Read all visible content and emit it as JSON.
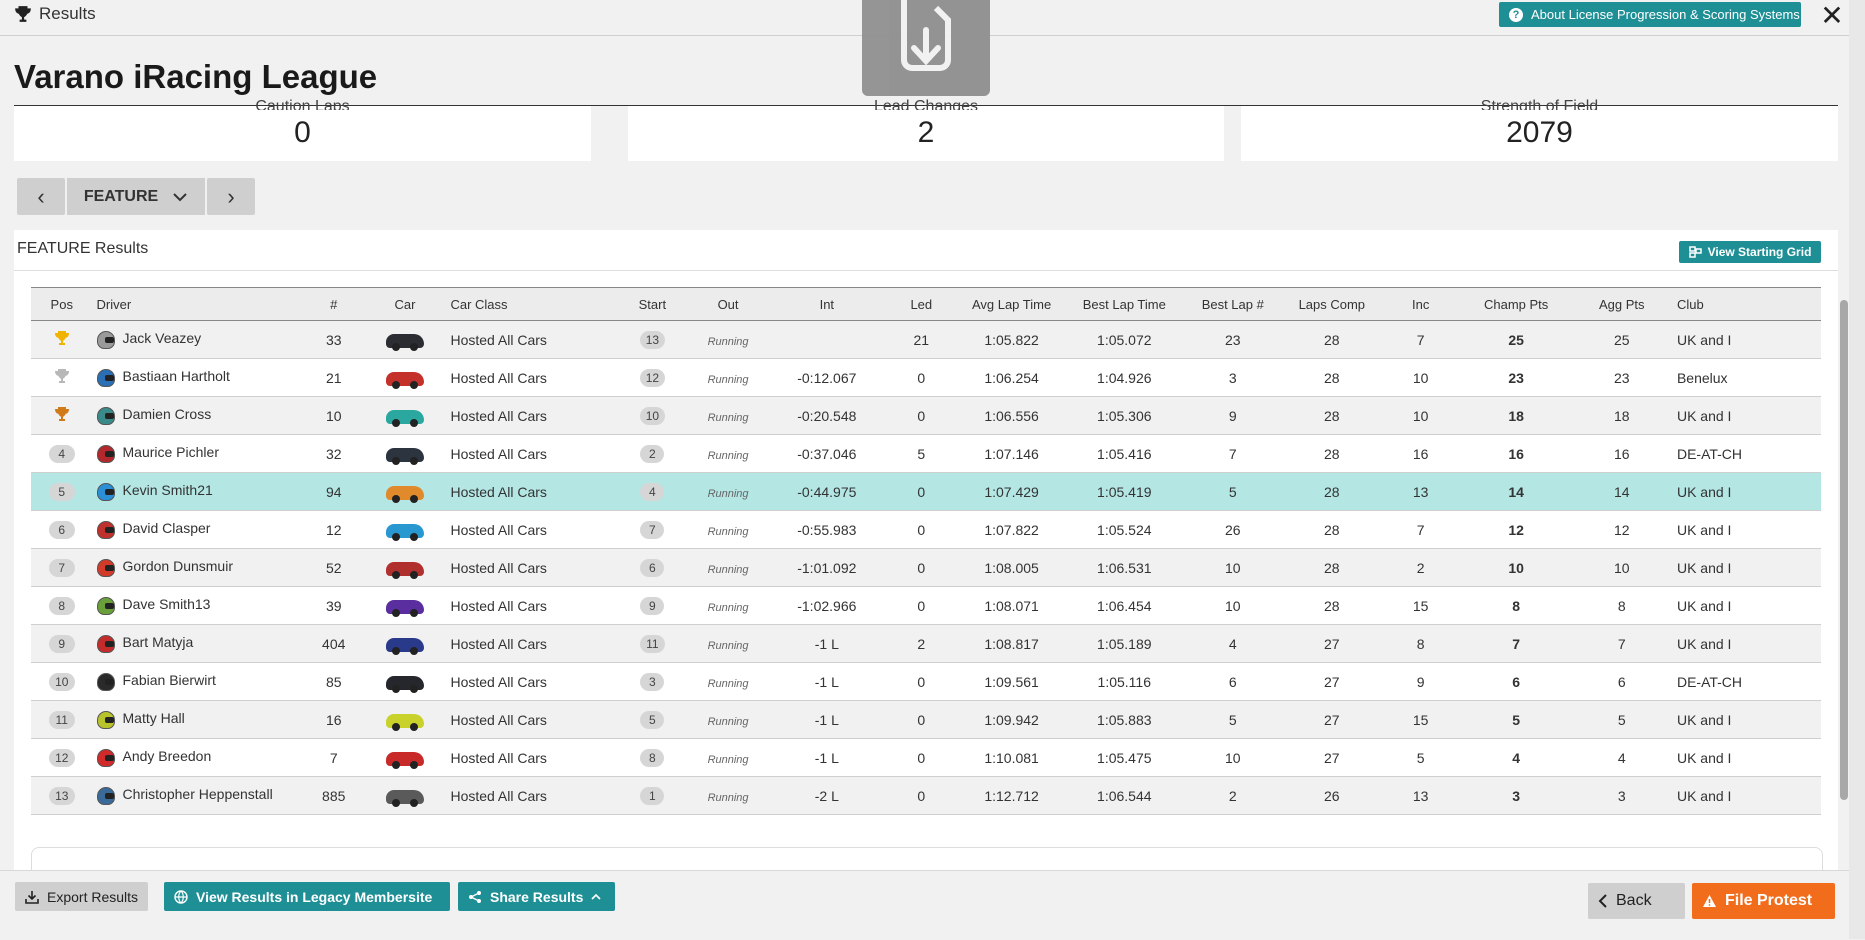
{
  "window": {
    "title": "Results",
    "about_label": "About License Progression & Scoring Systems"
  },
  "league": {
    "name": "Varano iRacing League"
  },
  "stats": [
    {
      "label": "Caution Laps",
      "value": "0"
    },
    {
      "label": "Lead Changes",
      "value": "2"
    },
    {
      "label": "Strength of Field",
      "value": "2079"
    }
  ],
  "session": {
    "selected": "FEATURE"
  },
  "results": {
    "heading": "FEATURE Results",
    "starting_grid_label": "View Starting Grid",
    "columns": [
      "Pos",
      "Driver",
      "#",
      "Car",
      "Car Class",
      "Start",
      "Out",
      "Int",
      "Led",
      "Avg Lap Time",
      "Best Lap Time",
      "Best Lap #",
      "Laps Comp",
      "Inc",
      "Champ Pts",
      "Agg Pts",
      "Club"
    ],
    "rows": [
      {
        "pos": "1",
        "driver": "Jack Veazey",
        "num": "33",
        "car_color": "#2b2d33",
        "helmet_color": "#9a9a9a",
        "class": "Hosted All Cars",
        "start": "13",
        "out": "Running",
        "int": "",
        "led": "21",
        "avg": "1:05.822",
        "best": "1:05.072",
        "best_lap": "23",
        "laps": "28",
        "inc": "7",
        "champ": "25",
        "agg": "25",
        "club": "UK and I"
      },
      {
        "pos": "2",
        "driver": "Bastiaan Hartholt",
        "num": "21",
        "car_color": "#c4312b",
        "helmet_color": "#2a6fb5",
        "class": "Hosted All Cars",
        "start": "12",
        "out": "Running",
        "int": "-0:12.067",
        "led": "0",
        "avg": "1:06.254",
        "best": "1:04.926",
        "best_lap": "3",
        "laps": "28",
        "inc": "10",
        "champ": "23",
        "agg": "23",
        "club": "Benelux"
      },
      {
        "pos": "3",
        "driver": "Damien Cross",
        "num": "10",
        "car_color": "#2aa8a0",
        "helmet_color": "#3a8a8a",
        "class": "Hosted All Cars",
        "start": "10",
        "out": "Running",
        "int": "-0:20.548",
        "led": "0",
        "avg": "1:06.556",
        "best": "1:05.306",
        "best_lap": "9",
        "laps": "28",
        "inc": "10",
        "champ": "18",
        "agg": "18",
        "club": "UK and I"
      },
      {
        "pos": "4",
        "driver": "Maurice Pichler",
        "num": "32",
        "car_color": "#2c3440",
        "helmet_color": "#b3282c",
        "class": "Hosted All Cars",
        "start": "2",
        "out": "Running",
        "int": "-0:37.046",
        "led": "5",
        "avg": "1:07.146",
        "best": "1:05.416",
        "best_lap": "7",
        "laps": "28",
        "inc": "16",
        "champ": "16",
        "agg": "16",
        "club": "DE-AT-CH"
      },
      {
        "pos": "5",
        "driver": "Kevin Smith21",
        "num": "94",
        "car_color": "#e08a2c",
        "helmet_color": "#2a8fd6",
        "class": "Hosted All Cars",
        "start": "4",
        "out": "Running",
        "int": "-0:44.975",
        "led": "0",
        "avg": "1:07.429",
        "best": "1:05.419",
        "best_lap": "5",
        "laps": "28",
        "inc": "13",
        "champ": "14",
        "agg": "14",
        "club": "UK and I"
      },
      {
        "pos": "6",
        "driver": "David Clasper",
        "num": "12",
        "car_color": "#2a98d0",
        "helmet_color": "#c0302c",
        "class": "Hosted All Cars",
        "start": "7",
        "out": "Running",
        "int": "-0:55.983",
        "led": "0",
        "avg": "1:07.822",
        "best": "1:05.524",
        "best_lap": "26",
        "laps": "28",
        "inc": "7",
        "champ": "12",
        "agg": "12",
        "club": "UK and I"
      },
      {
        "pos": "7",
        "driver": "Gordon Dunsmuir",
        "num": "52",
        "car_color": "#b0302e",
        "helmet_color": "#d23a2a",
        "class": "Hosted All Cars",
        "start": "6",
        "out": "Running",
        "int": "-1:01.092",
        "led": "0",
        "avg": "1:08.005",
        "best": "1:06.531",
        "best_lap": "10",
        "laps": "28",
        "inc": "2",
        "champ": "10",
        "agg": "10",
        "club": "UK and I"
      },
      {
        "pos": "8",
        "driver": "Dave Smith13",
        "num": "39",
        "car_color": "#5a2e9e",
        "helmet_color": "#6aa03a",
        "class": "Hosted All Cars",
        "start": "9",
        "out": "Running",
        "int": "-1:02.966",
        "led": "0",
        "avg": "1:08.071",
        "best": "1:06.454",
        "best_lap": "10",
        "laps": "28",
        "inc": "15",
        "champ": "8",
        "agg": "8",
        "club": "UK and I"
      },
      {
        "pos": "9",
        "driver": "Bart Matyja",
        "num": "404",
        "car_color": "#2a3a8a",
        "helmet_color": "#c42c2c",
        "class": "Hosted All Cars",
        "start": "11",
        "out": "Running",
        "int": "-1 L",
        "led": "2",
        "avg": "1:08.817",
        "best": "1:05.189",
        "best_lap": "4",
        "laps": "27",
        "inc": "8",
        "champ": "7",
        "agg": "7",
        "club": "UK and I"
      },
      {
        "pos": "10",
        "driver": "Fabian Bierwirt",
        "num": "85",
        "car_color": "#25272c",
        "helmet_color": "#2a2a2a",
        "class": "Hosted All Cars",
        "start": "3",
        "out": "Running",
        "int": "-1 L",
        "led": "0",
        "avg": "1:09.561",
        "best": "1:05.116",
        "best_lap": "6",
        "laps": "27",
        "inc": "9",
        "champ": "6",
        "agg": "6",
        "club": "DE-AT-CH"
      },
      {
        "pos": "11",
        "driver": "Matty Hall",
        "num": "16",
        "car_color": "#c8d22a",
        "helmet_color": "#b8c22a",
        "class": "Hosted All Cars",
        "start": "5",
        "out": "Running",
        "int": "-1 L",
        "led": "0",
        "avg": "1:09.942",
        "best": "1:05.883",
        "best_lap": "5",
        "laps": "27",
        "inc": "15",
        "champ": "5",
        "agg": "5",
        "club": "UK and I"
      },
      {
        "pos": "12",
        "driver": "Andy Breedon",
        "num": "7",
        "car_color": "#c82a2a",
        "helmet_color": "#d22a2a",
        "class": "Hosted All Cars",
        "start": "8",
        "out": "Running",
        "int": "-1 L",
        "led": "0",
        "avg": "1:10.081",
        "best": "1:05.475",
        "best_lap": "10",
        "laps": "27",
        "inc": "5",
        "champ": "4",
        "agg": "4",
        "club": "UK and I"
      },
      {
        "pos": "13",
        "driver": "Christopher Heppenstall",
        "num": "885",
        "car_color": "#5a5a5a",
        "helmet_color": "#3a6a9a",
        "class": "Hosted All Cars",
        "start": "1",
        "out": "Running",
        "int": "-2 L",
        "led": "0",
        "avg": "1:12.712",
        "best": "1:06.544",
        "best_lap": "2",
        "laps": "26",
        "inc": "13",
        "champ": "3",
        "agg": "3",
        "club": "UK and I"
      }
    ]
  },
  "footer": {
    "export_label": "Export Results",
    "legacy_label": "View Results in Legacy Membersite",
    "share_label": "Share Results",
    "back_label": "Back",
    "protest_label": "File Protest"
  },
  "colors": {
    "teal": "#1f8f96",
    "orange": "#f26d1b",
    "highlight": "#b4e6e4",
    "gold": "#f0b400",
    "silver": "#b8b8b8",
    "bronze": "#d07a1a"
  }
}
